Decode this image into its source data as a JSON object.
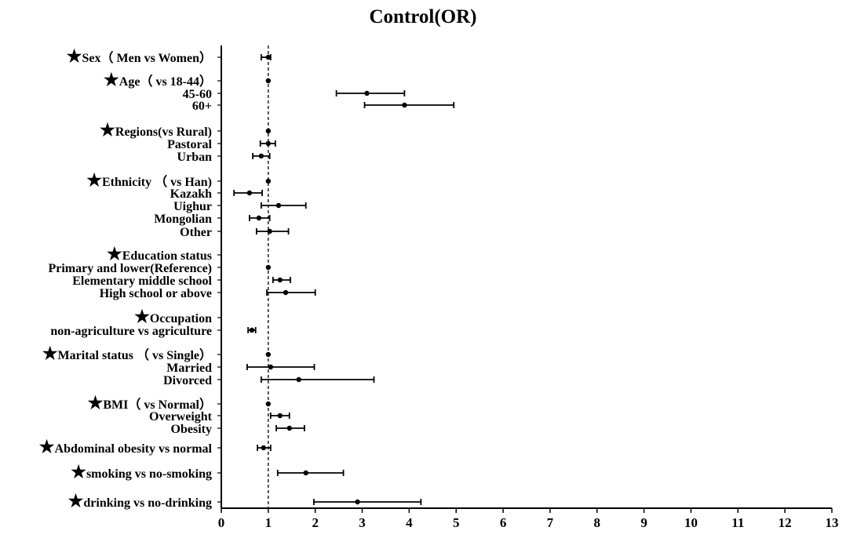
{
  "chart_data": {
    "type": "forest",
    "title": "Control(OR)",
    "reference_line": 1,
    "xlim": [
      0,
      13
    ],
    "x_ticks": [
      "0",
      "1",
      "2",
      "3",
      "4",
      "5",
      "6",
      "7",
      "8",
      "9",
      "10",
      "11",
      "12",
      "13"
    ],
    "star_glyph": "★",
    "rows": [
      {
        "label": "Sex（ Men vs Women）",
        "header": true,
        "or": 1.0,
        "lo": 0.85,
        "hi": 1.05
      },
      {
        "label": "Age（ vs 18-44）",
        "header": true,
        "or": 1.0,
        "lo": null,
        "hi": null
      },
      {
        "label": "45-60",
        "header": false,
        "or": 3.1,
        "lo": 2.45,
        "hi": 3.9
      },
      {
        "label": "60+",
        "header": false,
        "or": 3.9,
        "lo": 3.05,
        "hi": 4.95
      },
      {
        "label": "Regions(vs Rural)",
        "header": true,
        "or": 1.0,
        "lo": null,
        "hi": null
      },
      {
        "label": "Pastoral",
        "header": false,
        "or": 1.0,
        "lo": 0.83,
        "hi": 1.15
      },
      {
        "label": "Urban",
        "header": false,
        "or": 0.85,
        "lo": 0.67,
        "hi": 1.03
      },
      {
        "label": "Ethnicity （ vs Han)",
        "header": true,
        "or": 1.0,
        "lo": null,
        "hi": null
      },
      {
        "label": "Kazakh",
        "header": false,
        "or": 0.6,
        "lo": 0.27,
        "hi": 0.87
      },
      {
        "label": "Uighur",
        "header": false,
        "or": 1.22,
        "lo": 0.85,
        "hi": 1.8
      },
      {
        "label": "Mongolian",
        "header": false,
        "or": 0.8,
        "lo": 0.6,
        "hi": 1.03
      },
      {
        "label": "Other",
        "header": false,
        "or": 1.03,
        "lo": 0.75,
        "hi": 1.43
      },
      {
        "label": "Education status",
        "header": true,
        "or": null,
        "lo": null,
        "hi": null
      },
      {
        "label": "Primary and lower(Reference)",
        "header": false,
        "or": 1.0,
        "lo": null,
        "hi": null
      },
      {
        "label": "Elementary middle school",
        "header": false,
        "or": 1.25,
        "lo": 1.1,
        "hi": 1.47
      },
      {
        "label": "High school or above",
        "header": false,
        "or": 1.37,
        "lo": 0.97,
        "hi": 2.0
      },
      {
        "label": "Occupation",
        "header": true,
        "or": null,
        "lo": null,
        "hi": null
      },
      {
        "label": "non-agriculture vs agriculture",
        "header": false,
        "or": 0.65,
        "lo": 0.57,
        "hi": 0.73
      },
      {
        "label": "Marital status （ vs Single）",
        "header": true,
        "or": 1.0,
        "lo": null,
        "hi": null
      },
      {
        "label": "Married",
        "header": false,
        "or": 1.05,
        "lo": 0.55,
        "hi": 1.98
      },
      {
        "label": "Divorced",
        "header": false,
        "or": 1.65,
        "lo": 0.85,
        "hi": 3.25
      },
      {
        "label": "BMI（ vs Normal）",
        "header": true,
        "or": 1.0,
        "lo": null,
        "hi": null
      },
      {
        "label": "Overweight",
        "header": false,
        "or": 1.25,
        "lo": 1.05,
        "hi": 1.45
      },
      {
        "label": "Obesity",
        "header": false,
        "or": 1.45,
        "lo": 1.17,
        "hi": 1.77
      },
      {
        "label": "Abdominal obesity vs normal",
        "header": true,
        "or": 0.9,
        "lo": 0.77,
        "hi": 1.05
      },
      {
        "label": "smoking vs no-smoking",
        "header": true,
        "or": 1.8,
        "lo": 1.2,
        "hi": 2.6
      },
      {
        "label": "drinking vs no-drinking",
        "header": true,
        "or": 2.9,
        "lo": 1.97,
        "hi": 4.25
      }
    ]
  }
}
